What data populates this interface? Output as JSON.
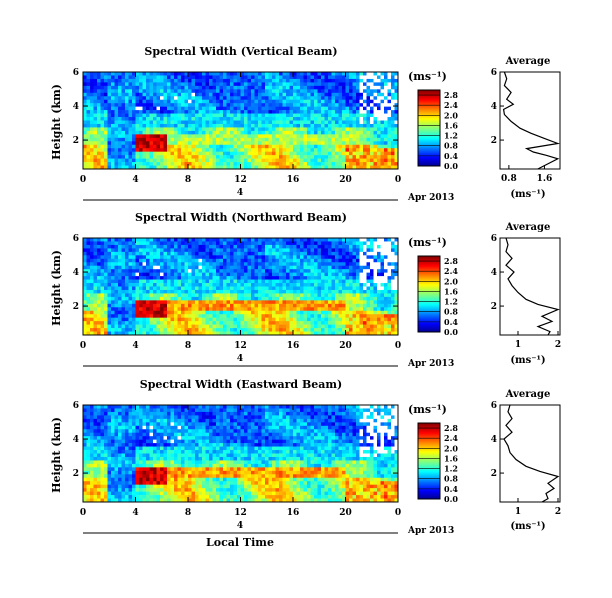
{
  "chart_data": [
    {
      "type": "heatmap",
      "title": "Spectral Width (Vertical Beam)",
      "xlabel": "",
      "ylabel": "Height (km)",
      "xticks": [
        "0",
        "4",
        "8",
        "12",
        "16",
        "20",
        "0"
      ],
      "yticks": [
        "2",
        "4",
        "6"
      ],
      "xlim": [
        0,
        24
      ],
      "ylim": [
        0.3,
        6
      ],
      "date_row": {
        "day": "4",
        "label": "Apr 2013"
      },
      "colorbar": {
        "unit": "(ms⁻¹)",
        "ticks": [
          "0.0",
          "0.4",
          "0.8",
          "1.2",
          "1.6",
          "2.0",
          "2.4",
          "2.8"
        ],
        "range": [
          0,
          3.0
        ]
      },
      "average": {
        "title": "Average",
        "xlabel": "(ms⁻¹)",
        "xticks": [
          "0.8",
          "1.6"
        ],
        "xlim": [
          0.6,
          1.95
        ],
        "yticks": [
          "2",
          "4",
          "6"
        ],
        "profile": [
          [
            1.45,
            0.3
          ],
          [
            1.6,
            0.5
          ],
          [
            1.9,
            0.9
          ],
          [
            1.65,
            1.1
          ],
          [
            1.35,
            1.3
          ],
          [
            1.2,
            1.5
          ],
          [
            1.9,
            1.8
          ],
          [
            1.6,
            2.1
          ],
          [
            1.3,
            2.4
          ],
          [
            1.05,
            2.7
          ],
          [
            0.85,
            3.1
          ],
          [
            0.7,
            3.5
          ],
          [
            0.68,
            3.8
          ],
          [
            0.9,
            4.1
          ],
          [
            0.75,
            4.4
          ],
          [
            0.85,
            4.8
          ],
          [
            0.7,
            5.2
          ],
          [
            0.75,
            5.6
          ],
          [
            0.7,
            6.0
          ]
        ]
      }
    },
    {
      "type": "heatmap",
      "title": "Spectral Width (Northward Beam)",
      "xlabel": "",
      "ylabel": "Height (km)",
      "xticks": [
        "0",
        "4",
        "8",
        "12",
        "16",
        "20",
        "0"
      ],
      "yticks": [
        "2",
        "4",
        "6"
      ],
      "xlim": [
        0,
        24
      ],
      "ylim": [
        0.3,
        6
      ],
      "date_row": {
        "day": "4",
        "label": "Apr 2013"
      },
      "colorbar": {
        "unit": "(ms⁻¹)",
        "ticks": [
          "0.0",
          "0.4",
          "0.8",
          "1.2",
          "1.6",
          "2.0",
          "2.4",
          "2.8"
        ],
        "range": [
          0,
          3.0
        ]
      },
      "average": {
        "title": "Average",
        "xlabel": "(ms⁻¹)",
        "xticks": [
          "1",
          "2"
        ],
        "xlim": [
          0.55,
          2.05
        ],
        "yticks": [
          "2",
          "4",
          "6"
        ],
        "profile": [
          [
            1.75,
            0.3
          ],
          [
            1.8,
            0.5
          ],
          [
            1.5,
            0.8
          ],
          [
            1.85,
            1.1
          ],
          [
            1.6,
            1.4
          ],
          [
            2.0,
            1.8
          ],
          [
            1.5,
            2.1
          ],
          [
            1.2,
            2.4
          ],
          [
            1.0,
            2.8
          ],
          [
            0.85,
            3.2
          ],
          [
            0.75,
            3.6
          ],
          [
            0.9,
            4.0
          ],
          [
            0.7,
            4.4
          ],
          [
            0.85,
            4.8
          ],
          [
            0.7,
            5.2
          ],
          [
            0.75,
            5.6
          ],
          [
            0.7,
            6.0
          ]
        ]
      }
    },
    {
      "type": "heatmap",
      "title": "Spectral Width (Eastward Beam)",
      "xlabel": "Local Time",
      "ylabel": "Height (km)",
      "xticks": [
        "0",
        "4",
        "8",
        "12",
        "16",
        "20",
        "0"
      ],
      "yticks": [
        "2",
        "4",
        "6"
      ],
      "xlim": [
        0,
        24
      ],
      "ylim": [
        0.3,
        6
      ],
      "date_row": {
        "day": "4",
        "label": "Apr 2013"
      },
      "colorbar": {
        "unit": "(ms⁻¹)",
        "ticks": [
          "0.0",
          "0.4",
          "0.8",
          "1.2",
          "1.6",
          "2.0",
          "2.4",
          "2.8"
        ],
        "range": [
          0,
          3.0
        ]
      },
      "average": {
        "title": "Average",
        "xlabel": "(ms⁻¹)",
        "xticks": [
          "1",
          "2"
        ],
        "xlim": [
          0.55,
          2.05
        ],
        "yticks": [
          "2",
          "4",
          "6"
        ],
        "profile": [
          [
            1.6,
            0.3
          ],
          [
            1.75,
            0.5
          ],
          [
            1.7,
            0.8
          ],
          [
            1.9,
            1.1
          ],
          [
            1.75,
            1.4
          ],
          [
            2.0,
            1.8
          ],
          [
            1.55,
            2.1
          ],
          [
            1.2,
            2.4
          ],
          [
            0.95,
            2.8
          ],
          [
            0.8,
            3.2
          ],
          [
            0.75,
            3.6
          ],
          [
            0.65,
            4.0
          ],
          [
            0.85,
            4.4
          ],
          [
            0.7,
            4.8
          ],
          [
            0.85,
            5.2
          ],
          [
            0.75,
            5.6
          ],
          [
            0.8,
            6.0
          ]
        ]
      }
    }
  ]
}
